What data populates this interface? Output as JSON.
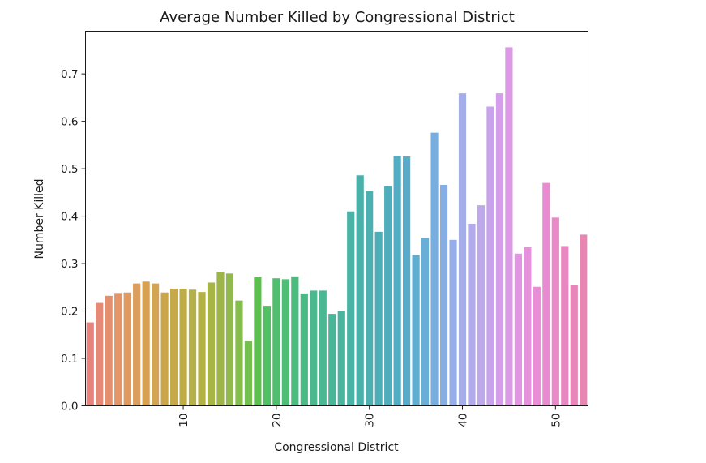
{
  "chart_data": {
    "type": "bar",
    "title": "Average Number Killed by Congressional District",
    "xlabel": "Congressional District",
    "ylabel": "Number Killed",
    "ylim": [
      0,
      0.79
    ],
    "x_tick_labels": [
      "10",
      "20",
      "30",
      "40",
      "50"
    ],
    "x_tick_rotation": "vertical",
    "y_tick_labels": [
      "0.0",
      "0.1",
      "0.2",
      "0.3",
      "0.4",
      "0.5",
      "0.6",
      "0.7"
    ],
    "grid": false,
    "categories": [
      0,
      1,
      2,
      3,
      4,
      5,
      6,
      7,
      8,
      9,
      10,
      11,
      12,
      13,
      14,
      15,
      16,
      17,
      18,
      19,
      20,
      21,
      22,
      23,
      24,
      25,
      26,
      27,
      28,
      29,
      30,
      31,
      32,
      33,
      34,
      35,
      36,
      37,
      38,
      39,
      40,
      41,
      42,
      43,
      44,
      45,
      46,
      47,
      48,
      49,
      50,
      51,
      52,
      53
    ],
    "values": [
      0.176,
      0.217,
      0.232,
      0.238,
      0.239,
      0.258,
      0.262,
      0.258,
      0.239,
      0.247,
      0.247,
      0.245,
      0.24,
      0.26,
      0.283,
      0.279,
      0.222,
      0.137,
      0.271,
      0.211,
      0.269,
      0.267,
      0.273,
      0.237,
      0.243,
      0.243,
      0.194,
      0.2,
      0.41,
      0.486,
      0.453,
      0.367,
      0.463,
      0.527,
      0.526,
      0.318,
      0.354,
      0.576,
      0.466,
      0.35,
      0.659,
      0.384,
      0.423,
      0.631,
      0.659,
      0.756,
      0.321,
      0.335,
      0.251,
      0.47,
      0.397,
      0.337,
      0.254,
      0.361
    ],
    "colors": [
      "#e6837d",
      "#e48a76",
      "#e4906c",
      "#e39568",
      "#e0995f",
      "#dc9e5c",
      "#d8a151",
      "#d3a552",
      "#cba648",
      "#c5a94a",
      "#beac47",
      "#b6b04a",
      "#b2b143",
      "#a7b446",
      "#9db548",
      "#92b94c",
      "#85bc4b",
      "#73c04e",
      "#5cc04f",
      "#50c063",
      "#4fbe6e",
      "#4ebd76",
      "#4cbc7e",
      "#4bbb86",
      "#4bb98d",
      "#4bb893",
      "#4ab699",
      "#49b59f",
      "#49b3a5",
      "#4ab1aa",
      "#4cb0b1",
      "#4daeb7",
      "#4fadbc",
      "#52acc3",
      "#58acca",
      "#5faed0",
      "#68aed7",
      "#77addf",
      "#85aee5",
      "#96aee7",
      "#a5aee8",
      "#b2aaea",
      "#bfa7ec",
      "#c9a2ec",
      "#d49eeb",
      "#dc99e6",
      "#e195e2",
      "#e591dc",
      "#e78ed6",
      "#e98bd0",
      "#ea88c8",
      "#ea86c1",
      "#e986b9",
      "#e985b2"
    ]
  }
}
